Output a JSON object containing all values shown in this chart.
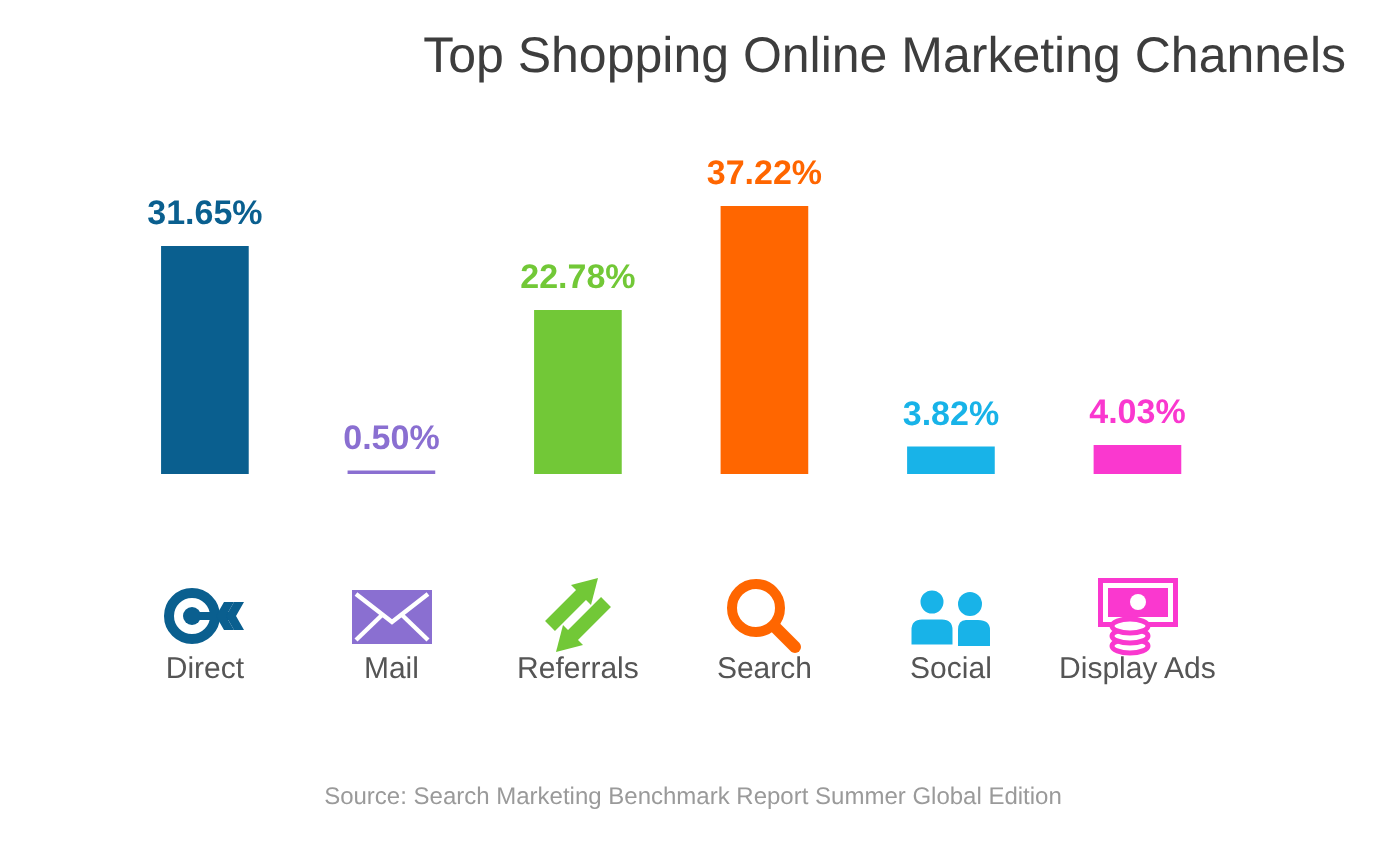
{
  "chart_data": {
    "type": "bar",
    "title": "Top Shopping Online Marketing Channels",
    "categories": [
      "Direct",
      "Mail",
      "Referrals",
      "Search",
      "Social",
      "Display Ads"
    ],
    "values": [
      31.65,
      0.5,
      22.78,
      37.22,
      3.82,
      4.03
    ],
    "colors": [
      "#0a5f8f",
      "#8a6fd1",
      "#72c837",
      "#ff6600",
      "#18b3e8",
      "#fa38cf"
    ],
    "value_labels": [
      "31.65%",
      "0.50%",
      "22.78%",
      "37.22%",
      "3.82%",
      "4.03%"
    ],
    "tick_labels": "x",
    "annotations": [
      "Source: Search Marketing Benchmark Report Summer Global Edition"
    ]
  }
}
